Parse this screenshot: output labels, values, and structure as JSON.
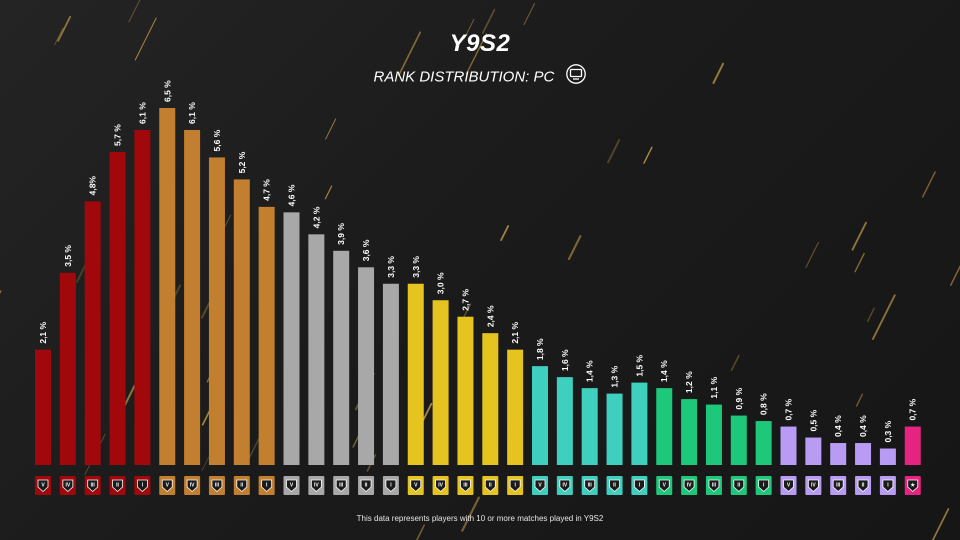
{
  "header": {
    "title": "Y9S2",
    "subtitle": "RANK DISTRIBUTION: PC",
    "platform_icon": "pc-monitor-icon"
  },
  "footnote": "This data represents players with 10 or more matches played in Y9S2",
  "tier_colors": {
    "copper": "#a0080b",
    "bronze": "#c27f2f",
    "silver": "#a8a8a8",
    "gold": "#e6c420",
    "platinum": "#3fcfbf",
    "emerald": "#1ec87a",
    "diamond": "#b89cf4",
    "champion": "#e62380"
  },
  "chart_data": {
    "type": "bar",
    "title": "Y9S2",
    "subtitle": "RANK DISTRIBUTION: PC",
    "categories": [
      "V",
      "IV",
      "III",
      "II",
      "I",
      "V",
      "IV",
      "III",
      "II",
      "I",
      "V",
      "IV",
      "III",
      "II",
      "I",
      "V",
      "IV",
      "III",
      "II",
      "I",
      "V",
      "IV",
      "III",
      "II",
      "I",
      "V",
      "IV",
      "III",
      "II",
      "I",
      "V",
      "IV",
      "III",
      "II",
      "I",
      ""
    ],
    "tiers": [
      "copper",
      "copper",
      "copper",
      "copper",
      "copper",
      "bronze",
      "bronze",
      "bronze",
      "bronze",
      "bronze",
      "silver",
      "silver",
      "silver",
      "silver",
      "silver",
      "gold",
      "gold",
      "gold",
      "gold",
      "gold",
      "platinum",
      "platinum",
      "platinum",
      "platinum",
      "platinum",
      "emerald",
      "emerald",
      "emerald",
      "emerald",
      "emerald",
      "diamond",
      "diamond",
      "diamond",
      "diamond",
      "diamond",
      "champion"
    ],
    "values": [
      2.1,
      3.5,
      4.8,
      5.7,
      6.1,
      6.5,
      6.1,
      5.6,
      5.2,
      4.7,
      4.6,
      4.2,
      3.9,
      3.6,
      3.3,
      3.3,
      3.0,
      2.7,
      2.4,
      2.1,
      1.8,
      1.6,
      1.4,
      1.3,
      1.5,
      1.4,
      1.2,
      1.1,
      0.9,
      0.8,
      0.7,
      0.5,
      0.4,
      0.4,
      0.3,
      0.7
    ],
    "labels": [
      "2,1 %",
      "3,5 %",
      "4,8%",
      "5,7 %",
      "6,1 %",
      "6,5 %",
      "6,1 %",
      "5,6 %",
      "5,2 %",
      "4,7 %",
      "4,6 %",
      "4,2 %",
      "3,9 %",
      "3,6 %",
      "3,3 %",
      "3,3 %",
      "3,0 %",
      "2,7 %",
      "2,4 %",
      "2,1 %",
      "1,8 %",
      "1,6 %",
      "1,4 %",
      "1,3 %",
      "1,5 %",
      "1,4 %",
      "1,2 %",
      "1,1 %",
      "0,9 %",
      "0,8 %",
      "0,7 %",
      "0,5 %",
      "0,4 %",
      "0,4 %",
      "0,3 %",
      "0,7 %"
    ],
    "ylim": [
      0,
      6.5
    ],
    "grid": false,
    "legend": "none"
  }
}
